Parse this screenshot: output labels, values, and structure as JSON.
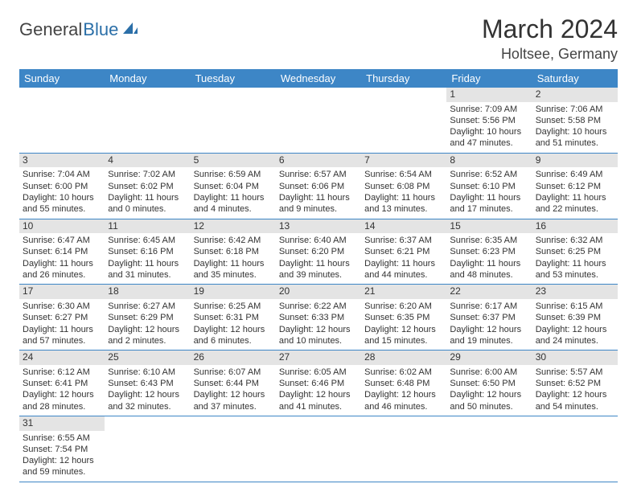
{
  "logo": {
    "text1": "General",
    "text2": "Blue"
  },
  "title": "March 2024",
  "location": "Holtsee, Germany",
  "colors": {
    "header_bg": "#3d86c6",
    "header_text": "#ffffff",
    "daynum_bg": "#e4e4e4",
    "border": "#3d86c6",
    "logo_blue": "#2b6fa8"
  },
  "weekdays": [
    "Sunday",
    "Monday",
    "Tuesday",
    "Wednesday",
    "Thursday",
    "Friday",
    "Saturday"
  ],
  "weeks": [
    [
      null,
      null,
      null,
      null,
      null,
      {
        "n": "1",
        "sr": "Sunrise: 7:09 AM",
        "ss": "Sunset: 5:56 PM",
        "d1": "Daylight: 10 hours",
        "d2": "and 47 minutes."
      },
      {
        "n": "2",
        "sr": "Sunrise: 7:06 AM",
        "ss": "Sunset: 5:58 PM",
        "d1": "Daylight: 10 hours",
        "d2": "and 51 minutes."
      }
    ],
    [
      {
        "n": "3",
        "sr": "Sunrise: 7:04 AM",
        "ss": "Sunset: 6:00 PM",
        "d1": "Daylight: 10 hours",
        "d2": "and 55 minutes."
      },
      {
        "n": "4",
        "sr": "Sunrise: 7:02 AM",
        "ss": "Sunset: 6:02 PM",
        "d1": "Daylight: 11 hours",
        "d2": "and 0 minutes."
      },
      {
        "n": "5",
        "sr": "Sunrise: 6:59 AM",
        "ss": "Sunset: 6:04 PM",
        "d1": "Daylight: 11 hours",
        "d2": "and 4 minutes."
      },
      {
        "n": "6",
        "sr": "Sunrise: 6:57 AM",
        "ss": "Sunset: 6:06 PM",
        "d1": "Daylight: 11 hours",
        "d2": "and 9 minutes."
      },
      {
        "n": "7",
        "sr": "Sunrise: 6:54 AM",
        "ss": "Sunset: 6:08 PM",
        "d1": "Daylight: 11 hours",
        "d2": "and 13 minutes."
      },
      {
        "n": "8",
        "sr": "Sunrise: 6:52 AM",
        "ss": "Sunset: 6:10 PM",
        "d1": "Daylight: 11 hours",
        "d2": "and 17 minutes."
      },
      {
        "n": "9",
        "sr": "Sunrise: 6:49 AM",
        "ss": "Sunset: 6:12 PM",
        "d1": "Daylight: 11 hours",
        "d2": "and 22 minutes."
      }
    ],
    [
      {
        "n": "10",
        "sr": "Sunrise: 6:47 AM",
        "ss": "Sunset: 6:14 PM",
        "d1": "Daylight: 11 hours",
        "d2": "and 26 minutes."
      },
      {
        "n": "11",
        "sr": "Sunrise: 6:45 AM",
        "ss": "Sunset: 6:16 PM",
        "d1": "Daylight: 11 hours",
        "d2": "and 31 minutes."
      },
      {
        "n": "12",
        "sr": "Sunrise: 6:42 AM",
        "ss": "Sunset: 6:18 PM",
        "d1": "Daylight: 11 hours",
        "d2": "and 35 minutes."
      },
      {
        "n": "13",
        "sr": "Sunrise: 6:40 AM",
        "ss": "Sunset: 6:20 PM",
        "d1": "Daylight: 11 hours",
        "d2": "and 39 minutes."
      },
      {
        "n": "14",
        "sr": "Sunrise: 6:37 AM",
        "ss": "Sunset: 6:21 PM",
        "d1": "Daylight: 11 hours",
        "d2": "and 44 minutes."
      },
      {
        "n": "15",
        "sr": "Sunrise: 6:35 AM",
        "ss": "Sunset: 6:23 PM",
        "d1": "Daylight: 11 hours",
        "d2": "and 48 minutes."
      },
      {
        "n": "16",
        "sr": "Sunrise: 6:32 AM",
        "ss": "Sunset: 6:25 PM",
        "d1": "Daylight: 11 hours",
        "d2": "and 53 minutes."
      }
    ],
    [
      {
        "n": "17",
        "sr": "Sunrise: 6:30 AM",
        "ss": "Sunset: 6:27 PM",
        "d1": "Daylight: 11 hours",
        "d2": "and 57 minutes."
      },
      {
        "n": "18",
        "sr": "Sunrise: 6:27 AM",
        "ss": "Sunset: 6:29 PM",
        "d1": "Daylight: 12 hours",
        "d2": "and 2 minutes."
      },
      {
        "n": "19",
        "sr": "Sunrise: 6:25 AM",
        "ss": "Sunset: 6:31 PM",
        "d1": "Daylight: 12 hours",
        "d2": "and 6 minutes."
      },
      {
        "n": "20",
        "sr": "Sunrise: 6:22 AM",
        "ss": "Sunset: 6:33 PM",
        "d1": "Daylight: 12 hours",
        "d2": "and 10 minutes."
      },
      {
        "n": "21",
        "sr": "Sunrise: 6:20 AM",
        "ss": "Sunset: 6:35 PM",
        "d1": "Daylight: 12 hours",
        "d2": "and 15 minutes."
      },
      {
        "n": "22",
        "sr": "Sunrise: 6:17 AM",
        "ss": "Sunset: 6:37 PM",
        "d1": "Daylight: 12 hours",
        "d2": "and 19 minutes."
      },
      {
        "n": "23",
        "sr": "Sunrise: 6:15 AM",
        "ss": "Sunset: 6:39 PM",
        "d1": "Daylight: 12 hours",
        "d2": "and 24 minutes."
      }
    ],
    [
      {
        "n": "24",
        "sr": "Sunrise: 6:12 AM",
        "ss": "Sunset: 6:41 PM",
        "d1": "Daylight: 12 hours",
        "d2": "and 28 minutes."
      },
      {
        "n": "25",
        "sr": "Sunrise: 6:10 AM",
        "ss": "Sunset: 6:43 PM",
        "d1": "Daylight: 12 hours",
        "d2": "and 32 minutes."
      },
      {
        "n": "26",
        "sr": "Sunrise: 6:07 AM",
        "ss": "Sunset: 6:44 PM",
        "d1": "Daylight: 12 hours",
        "d2": "and 37 minutes."
      },
      {
        "n": "27",
        "sr": "Sunrise: 6:05 AM",
        "ss": "Sunset: 6:46 PM",
        "d1": "Daylight: 12 hours",
        "d2": "and 41 minutes."
      },
      {
        "n": "28",
        "sr": "Sunrise: 6:02 AM",
        "ss": "Sunset: 6:48 PM",
        "d1": "Daylight: 12 hours",
        "d2": "and 46 minutes."
      },
      {
        "n": "29",
        "sr": "Sunrise: 6:00 AM",
        "ss": "Sunset: 6:50 PM",
        "d1": "Daylight: 12 hours",
        "d2": "and 50 minutes."
      },
      {
        "n": "30",
        "sr": "Sunrise: 5:57 AM",
        "ss": "Sunset: 6:52 PM",
        "d1": "Daylight: 12 hours",
        "d2": "and 54 minutes."
      }
    ],
    [
      {
        "n": "31",
        "sr": "Sunrise: 6:55 AM",
        "ss": "Sunset: 7:54 PM",
        "d1": "Daylight: 12 hours",
        "d2": "and 59 minutes."
      },
      null,
      null,
      null,
      null,
      null,
      null
    ]
  ]
}
